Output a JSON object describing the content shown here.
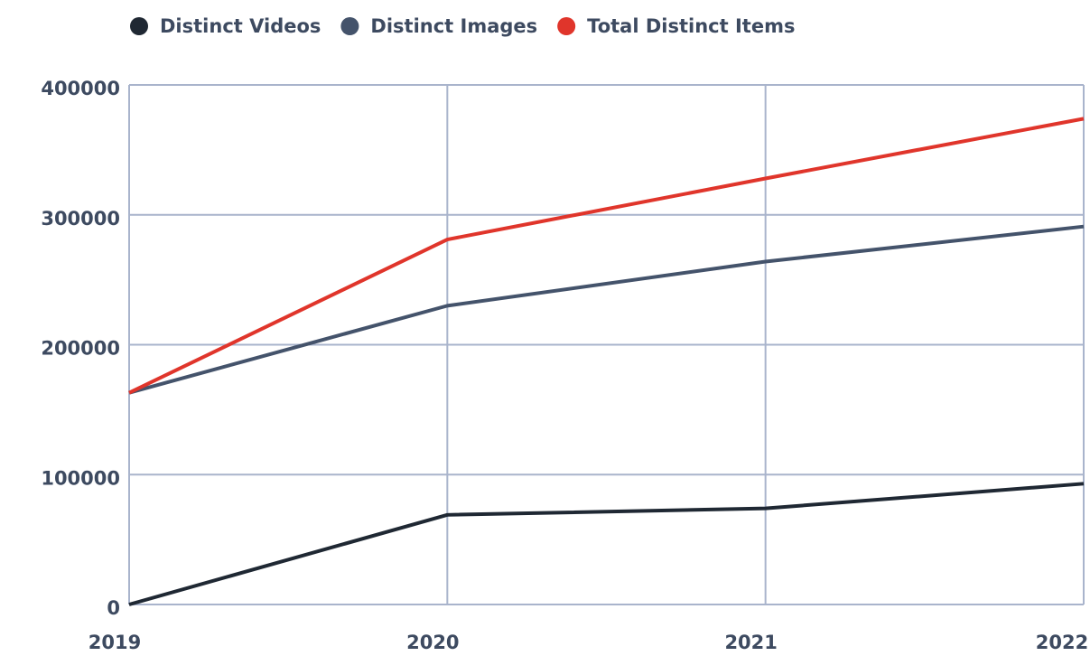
{
  "chart_data": {
    "type": "line",
    "categories": [
      "2019",
      "2020",
      "2021",
      "2022"
    ],
    "series": [
      {
        "name": "Distinct Videos",
        "color": "#1f2833",
        "values": [
          0,
          69000,
          74000,
          93000
        ]
      },
      {
        "name": "Distinct Images",
        "color": "#44536b",
        "values": [
          163000,
          230000,
          264000,
          291000
        ]
      },
      {
        "name": "Total Distinct Items",
        "color": "#e0352b",
        "values": [
          163000,
          281000,
          328000,
          374000
        ]
      }
    ],
    "ylim": [
      0,
      400000
    ],
    "yticks": [
      0,
      100000,
      200000,
      300000,
      400000
    ],
    "grid": true,
    "legend": "top"
  }
}
